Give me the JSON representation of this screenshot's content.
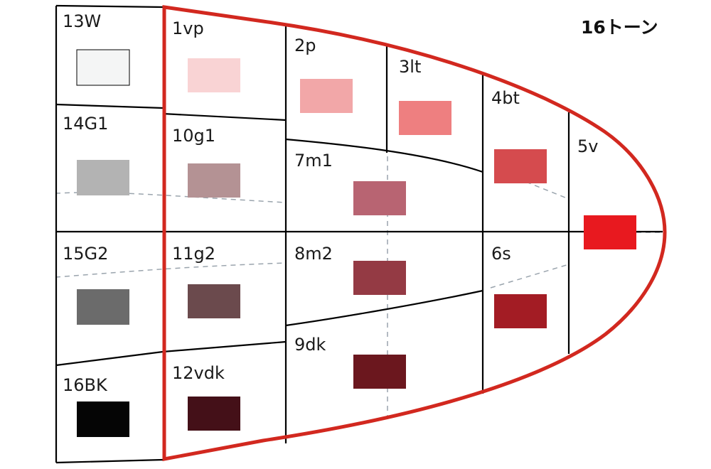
{
  "title": "16トーン",
  "colors": {
    "outline": "#d2281f",
    "grid": "#000000",
    "guide": "#9aa4ad"
  },
  "tones": [
    {
      "label": "13W",
      "color": "#f4f5f5"
    },
    {
      "label": "14G1",
      "color": "#b3b3b3"
    },
    {
      "label": "15G2",
      "color": "#6b6b6b"
    },
    {
      "label": "16BK",
      "color": "#050505"
    },
    {
      "label": "1vp",
      "color": "#f9d3d4"
    },
    {
      "label": "10g1",
      "color": "#b49294"
    },
    {
      "label": "11g2",
      "color": "#6b4a4d"
    },
    {
      "label": "12vdk",
      "color": "#441018"
    },
    {
      "label": "2p",
      "color": "#f2a7a8"
    },
    {
      "label": "7m1",
      "color": "#b86472"
    },
    {
      "label": "8m2",
      "color": "#943a44"
    },
    {
      "label": "9dk",
      "color": "#6b171e"
    },
    {
      "label": "3lt",
      "color": "#ee7f80"
    },
    {
      "label": "4bt",
      "color": "#d54b4e"
    },
    {
      "label": "6s",
      "color": "#a31c24"
    },
    {
      "label": "5v",
      "color": "#e8191f"
    }
  ]
}
